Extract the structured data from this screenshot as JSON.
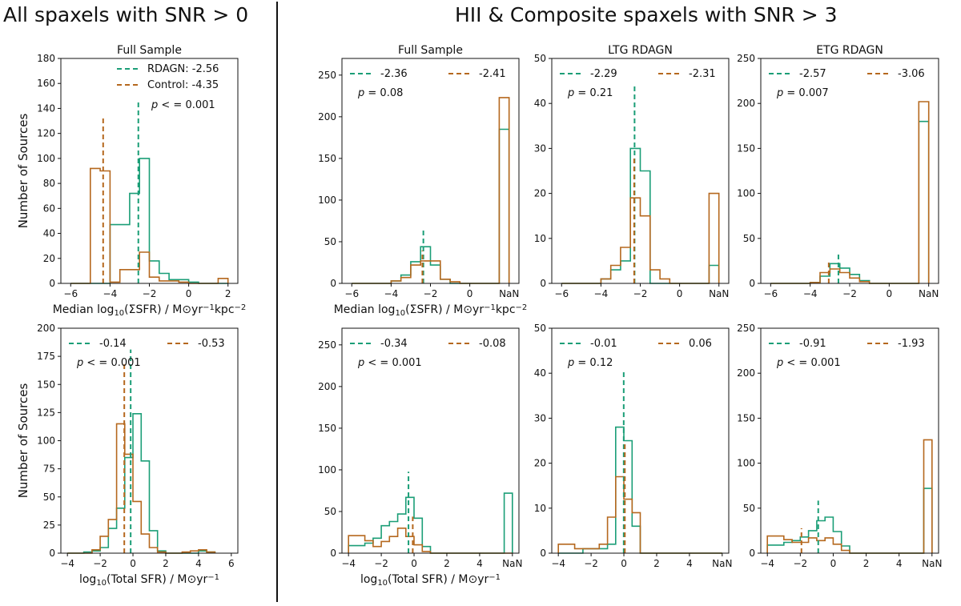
{
  "headings": {
    "left": "All spaxels with SNR > 0",
    "right": "HII & Composite spaxels with SNR > 3"
  },
  "colors": {
    "rdagn": "#1b9e77",
    "control": "#b5681e"
  },
  "legend_names": {
    "rdagn": "RDAGN",
    "control": "Control"
  },
  "chart_data": [
    {
      "id": "p_all_med",
      "type": "histogram",
      "title": "Full Sample",
      "xlabel": "Median log10(ΣSFR) / M⊙yr⁻¹kpc⁻²",
      "ylabel": "Number of Sources",
      "xlim": [
        -6.5,
        2.5
      ],
      "ylim": [
        0,
        180
      ],
      "xticks": [
        -6,
        -4,
        -2,
        0,
        2
      ],
      "xtick_labels": [
        "−6",
        "−4",
        "−2",
        "0",
        "2"
      ],
      "yticks": [
        0,
        20,
        40,
        60,
        80,
        100,
        120,
        140,
        160,
        180
      ],
      "edges": [
        -6,
        -5.5,
        -5,
        -4.5,
        -4,
        -3.5,
        -3,
        -2.5,
        -2,
        -1.5,
        -1,
        -0.5,
        0,
        0.5,
        1,
        1.5,
        2
      ],
      "series": [
        {
          "name": "RDAGN",
          "key": "rdagn",
          "median": -2.56,
          "legend": "RDAGN: -2.56",
          "values": [
            0,
            0,
            0,
            0,
            47,
            47,
            72,
            100,
            18,
            8,
            3,
            3,
            1,
            0,
            0,
            0
          ]
        },
        {
          "name": "Control",
          "key": "control",
          "median": -4.35,
          "legend": "Control: -4.35",
          "values": [
            0,
            0,
            92,
            90,
            1,
            11,
            11,
            25,
            5,
            2,
            2,
            1,
            0,
            0,
            0,
            4
          ]
        }
      ],
      "legend_style": "full",
      "pvalue": "p < = 0.001"
    },
    {
      "id": "p_all_tot",
      "type": "histogram",
      "title": "",
      "xlabel": "log10(Total SFR) / M⊙yr⁻¹",
      "ylabel": "Number of Sources",
      "xlim": [
        -4.4,
        6.4
      ],
      "ylim": [
        0,
        200
      ],
      "xticks": [
        -4,
        -2,
        0,
        2,
        4,
        6
      ],
      "xtick_labels": [
        "−4",
        "−2",
        "0",
        "2",
        "4",
        "6"
      ],
      "yticks": [
        0,
        25,
        50,
        75,
        100,
        125,
        150,
        175,
        200
      ],
      "edges": [
        -4,
        -3.5,
        -3,
        -2.5,
        -2,
        -1.5,
        -1,
        -0.5,
        0,
        0.5,
        1,
        1.5,
        2,
        2.5,
        3,
        3.5,
        4,
        4.5,
        5
      ],
      "series": [
        {
          "name": "RDAGN",
          "key": "rdagn",
          "median": -0.14,
          "legend": "-0.14",
          "values": [
            0,
            0,
            1,
            2,
            5,
            22,
            40,
            85,
            124,
            82,
            20,
            2,
            0,
            0,
            0,
            0,
            2,
            1
          ]
        },
        {
          "name": "Control",
          "key": "control",
          "median": -0.53,
          "legend": "-0.53",
          "values": [
            0,
            0,
            0,
            3,
            15,
            30,
            115,
            88,
            46,
            17,
            5,
            1,
            0,
            0,
            1,
            2,
            3,
            1
          ]
        }
      ],
      "legend_style": "row",
      "pvalue": "p < = 0.001"
    },
    {
      "id": "p_hc_full_med",
      "type": "histogram",
      "title": "Full Sample",
      "xlabel": "Median log10(ΣSFR) / M⊙yr⁻¹kpc⁻²",
      "ylabel": "",
      "xlim": [
        -6.5,
        2.5
      ],
      "ylim": [
        0,
        270
      ],
      "xticks": [
        -6,
        -4,
        -2,
        0,
        2
      ],
      "xtick_labels": [
        "−6",
        "−4",
        "−2",
        "0",
        "NaN"
      ],
      "yticks": [
        0,
        50,
        100,
        150,
        200,
        250
      ],
      "edges": [
        -6,
        -5.5,
        -5,
        -4.5,
        -4,
        -3.5,
        -3,
        -2.5,
        -2,
        -1.5,
        -1,
        -0.5,
        0,
        0.5,
        1,
        1.5,
        2
      ],
      "series": [
        {
          "name": "RDAGN",
          "key": "rdagn",
          "median": -2.36,
          "legend": "-2.36",
          "values": [
            0,
            0,
            0,
            0,
            3,
            10,
            26,
            44,
            22,
            5,
            0,
            0,
            0,
            0,
            0,
            185
          ]
        },
        {
          "name": "Control",
          "key": "control",
          "median": -2.41,
          "legend": "-2.41",
          "values": [
            0,
            0,
            0,
            0,
            3,
            7,
            22,
            27,
            27,
            5,
            2,
            0,
            0,
            0,
            0,
            223
          ]
        }
      ],
      "legend_style": "row",
      "pvalue": "p = 0.08"
    },
    {
      "id": "p_hc_ltg_med",
      "type": "histogram",
      "title": "LTG RDAGN",
      "xlabel": "",
      "ylabel": "",
      "xlim": [
        -6.5,
        2.5
      ],
      "ylim": [
        0,
        50
      ],
      "xticks": [
        -6,
        -4,
        -2,
        0,
        2
      ],
      "xtick_labels": [
        "−6",
        "−4",
        "−2",
        "0",
        "NaN"
      ],
      "yticks": [
        0,
        10,
        20,
        30,
        40,
        50
      ],
      "edges": [
        -6,
        -5.5,
        -5,
        -4.5,
        -4,
        -3.5,
        -3,
        -2.5,
        -2,
        -1.5,
        -1,
        -0.5,
        0,
        0.5,
        1,
        1.5,
        2
      ],
      "series": [
        {
          "name": "RDAGN",
          "key": "rdagn",
          "median": -2.29,
          "legend": "-2.29",
          "values": [
            0,
            0,
            0,
            0,
            1,
            3,
            5,
            30,
            25,
            0,
            0,
            0,
            0,
            0,
            0,
            4
          ]
        },
        {
          "name": "Control",
          "key": "control",
          "median": -2.31,
          "legend": "-2.31",
          "values": [
            0,
            0,
            0,
            0,
            1,
            4,
            8,
            19,
            15,
            3,
            1,
            0,
            0,
            0,
            0,
            20
          ]
        }
      ],
      "legend_style": "row",
      "pvalue": "p = 0.21"
    },
    {
      "id": "p_hc_etg_med",
      "type": "histogram",
      "title": "ETG RDAGN",
      "xlabel": "",
      "ylabel": "",
      "xlim": [
        -6.5,
        2.5
      ],
      "ylim": [
        0,
        250
      ],
      "xticks": [
        -6,
        -4,
        -2,
        0,
        2
      ],
      "xtick_labels": [
        "−6",
        "−4",
        "−2",
        "0",
        "NaN"
      ],
      "yticks": [
        0,
        50,
        100,
        150,
        200,
        250
      ],
      "edges": [
        -6,
        -5.5,
        -5,
        -4.5,
        -4,
        -3.5,
        -3,
        -2.5,
        -2,
        -1.5,
        -1,
        -0.5,
        0,
        0.5,
        1,
        1.5,
        2
      ],
      "series": [
        {
          "name": "RDAGN",
          "key": "rdagn",
          "median": -2.57,
          "legend": "-2.57",
          "values": [
            0,
            0,
            0,
            0,
            1,
            8,
            22,
            17,
            10,
            3,
            0,
            0,
            0,
            0,
            0,
            180
          ]
        },
        {
          "name": "Control",
          "key": "control",
          "median": -3.06,
          "legend": "-3.06",
          "values": [
            0,
            0,
            0,
            0,
            1,
            12,
            16,
            12,
            6,
            2,
            0,
            0,
            0,
            0,
            0,
            202
          ]
        }
      ],
      "legend_style": "row",
      "pvalue": "p = 0.007"
    },
    {
      "id": "p_hc_full_tot",
      "type": "histogram",
      "title": "",
      "xlabel": "log10(Total SFR) / M⊙yr⁻¹",
      "ylabel": "",
      "xlim": [
        -4.4,
        6.4
      ],
      "ylim": [
        0,
        270
      ],
      "xticks": [
        -4,
        -2,
        0,
        2,
        4,
        6
      ],
      "xtick_labels": [
        "−4",
        "−2",
        "0",
        "2",
        "4",
        "NaN"
      ],
      "yticks": [
        0,
        50,
        100,
        150,
        200,
        250
      ],
      "edges": [
        -4,
        -3.5,
        -3,
        -2.5,
        -2,
        -1.5,
        -1,
        -0.5,
        0,
        0.5,
        1,
        1.5,
        2,
        2.5,
        3,
        3.5,
        4,
        4.5,
        5,
        5.5,
        6
      ],
      "series": [
        {
          "name": "RDAGN",
          "key": "rdagn",
          "median": -0.34,
          "legend": "-0.34",
          "values": [
            9,
            9,
            12,
            18,
            33,
            38,
            47,
            67,
            42,
            8,
            0,
            0,
            0,
            0,
            0,
            0,
            0,
            0,
            0,
            72
          ]
        },
        {
          "name": "Control",
          "key": "control",
          "median": -0.08,
          "legend": "-0.08",
          "values": [
            21,
            21,
            15,
            8,
            14,
            20,
            30,
            20,
            10,
            2,
            0,
            0,
            0,
            0,
            0,
            0,
            0,
            0,
            0,
            0
          ]
        }
      ],
      "legend_style": "row",
      "pvalue": "p < = 0.001"
    },
    {
      "id": "p_hc_ltg_tot",
      "type": "histogram",
      "title": "",
      "xlabel": "",
      "ylabel": "",
      "xlim": [
        -4.4,
        6.4
      ],
      "ylim": [
        0,
        50
      ],
      "xticks": [
        -4,
        -2,
        0,
        2,
        4,
        6
      ],
      "xtick_labels": [
        "−4",
        "−2",
        "0",
        "2",
        "4",
        "NaN"
      ],
      "yticks": [
        0,
        10,
        20,
        30,
        40,
        50
      ],
      "edges": [
        -4,
        -3.5,
        -3,
        -2.5,
        -2,
        -1.5,
        -1,
        -0.5,
        0,
        0.5,
        1,
        1.5,
        2,
        2.5,
        3,
        3.5,
        4,
        4.5,
        5,
        5.5,
        6
      ],
      "series": [
        {
          "name": "RDAGN",
          "key": "rdagn",
          "median": -0.01,
          "legend": "-0.01",
          "values": [
            0,
            0,
            0,
            1,
            1,
            1,
            2,
            28,
            25,
            6,
            0,
            0,
            0,
            0,
            0,
            0,
            0,
            0,
            0,
            0
          ]
        },
        {
          "name": "Control",
          "key": "control",
          "median": 0.06,
          "legend": "0.06",
          "values": [
            2,
            2,
            1,
            1,
            1,
            2,
            8,
            17,
            12,
            9,
            0,
            0,
            0,
            0,
            0,
            0,
            0,
            0,
            0,
            0
          ]
        }
      ],
      "legend_style": "row",
      "pvalue": "p = 0.12"
    },
    {
      "id": "p_hc_etg_tot",
      "type": "histogram",
      "title": "",
      "xlabel": "",
      "ylabel": "",
      "xlim": [
        -4.4,
        6.4
      ],
      "ylim": [
        0,
        250
      ],
      "xticks": [
        -4,
        -2,
        0,
        2,
        4,
        6
      ],
      "xtick_labels": [
        "−4",
        "−2",
        "0",
        "2",
        "4",
        "NaN"
      ],
      "yticks": [
        0,
        50,
        100,
        150,
        200,
        250
      ],
      "edges": [
        -4,
        -3.5,
        -3,
        -2.5,
        -2,
        -1.5,
        -1,
        -0.5,
        0,
        0.5,
        1,
        1.5,
        2,
        2.5,
        3,
        3.5,
        4,
        4.5,
        5,
        5.5,
        6
      ],
      "series": [
        {
          "name": "RDAGN",
          "key": "rdagn",
          "median": -0.91,
          "legend": "-0.91",
          "values": [
            9,
            9,
            12,
            14,
            18,
            25,
            36,
            40,
            24,
            8,
            0,
            0,
            0,
            0,
            0,
            0,
            0,
            0,
            0,
            72
          ]
        },
        {
          "name": "Control",
          "key": "control",
          "median": -1.93,
          "legend": "-1.93",
          "values": [
            19,
            19,
            15,
            12,
            12,
            17,
            14,
            17,
            10,
            3,
            0,
            0,
            0,
            0,
            0,
            0,
            0,
            0,
            0,
            126
          ]
        }
      ],
      "legend_style": "row",
      "pvalue": "p < = 0.001"
    }
  ]
}
